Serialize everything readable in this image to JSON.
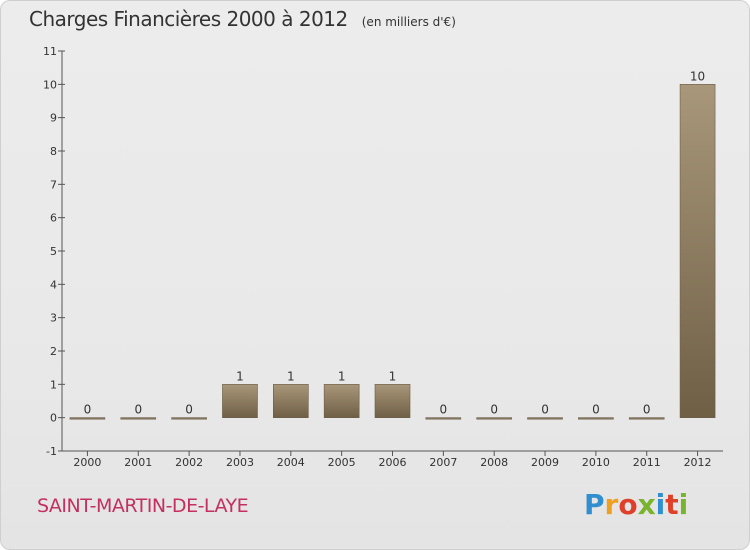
{
  "header": {
    "title": "Charges Financières 2000 à 2012",
    "subtitle": "(en milliers d'€)"
  },
  "footer": {
    "commune": "SAINT-MARTIN-DE-LAYE",
    "logo": "Proxiti"
  },
  "colors": {
    "bar_top": "#a8977a",
    "bar_bottom": "#6f5f45",
    "commune_text": "#c4305f",
    "logo_letters": [
      "#2f8fd0",
      "#f0a020",
      "#e0402a",
      "#7ab32e",
      "#2f8fd0",
      "#e0402a",
      "#7ab32e"
    ]
  },
  "chart_data": {
    "type": "bar",
    "title": "Charges Financières 2000 à 2012",
    "subtitle": "(en milliers d'€)",
    "categories": [
      "2000",
      "2001",
      "2002",
      "2003",
      "2004",
      "2005",
      "2006",
      "2007",
      "2008",
      "2009",
      "2010",
      "2011",
      "2012"
    ],
    "values": [
      0,
      0,
      0,
      1,
      1,
      1,
      1,
      0,
      0,
      0,
      0,
      0,
      10
    ],
    "ylim": [
      -1,
      11
    ],
    "yticks": [
      -1,
      0,
      1,
      2,
      3,
      4,
      5,
      6,
      7,
      8,
      9,
      10,
      11
    ],
    "grid": false,
    "legend": "none"
  }
}
